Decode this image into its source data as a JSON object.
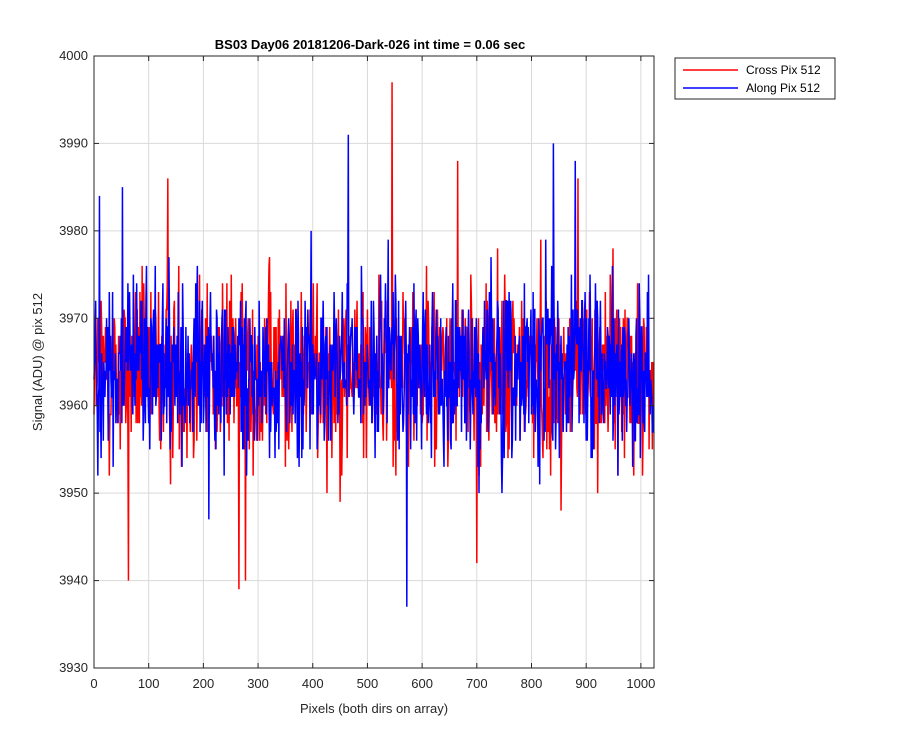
{
  "chart_data": {
    "type": "line",
    "title": "BS03 Day06 20181206-Dark-026 int time = 0.06 sec",
    "xlabel": "Pixels (both dirs on array)",
    "ylabel": "Signal (ADU) @ pix 512",
    "xlim": [
      0,
      1024
    ],
    "ylim": [
      3930,
      4000
    ],
    "xticks": [
      0,
      100,
      200,
      300,
      400,
      500,
      600,
      700,
      800,
      900,
      1000
    ],
    "yticks": [
      3930,
      3940,
      3950,
      3960,
      3970,
      3980,
      3990,
      4000
    ],
    "grid": true,
    "legend_position": "outside-top-right",
    "series": [
      {
        "name": "Cross Pix 512",
        "color": "#ff0000",
        "mean": 3964,
        "num_points": 1024,
        "anchors": [
          {
            "x": 63,
            "y": 3940
          },
          {
            "x": 135,
            "y": 3986
          },
          {
            "x": 265,
            "y": 3939
          },
          {
            "x": 277,
            "y": 3940
          },
          {
            "x": 545,
            "y": 3997
          },
          {
            "x": 665,
            "y": 3988
          },
          {
            "x": 700,
            "y": 3942
          },
          {
            "x": 885,
            "y": 3986
          }
        ]
      },
      {
        "name": "Along Pix 512",
        "color": "#0000ff",
        "mean": 3964,
        "num_points": 1024,
        "anchors": [
          {
            "x": 10,
            "y": 3984
          },
          {
            "x": 52,
            "y": 3985
          },
          {
            "x": 465,
            "y": 3991
          },
          {
            "x": 572,
            "y": 3937
          },
          {
            "x": 840,
            "y": 3990
          },
          {
            "x": 880,
            "y": 3988
          }
        ]
      }
    ]
  }
}
